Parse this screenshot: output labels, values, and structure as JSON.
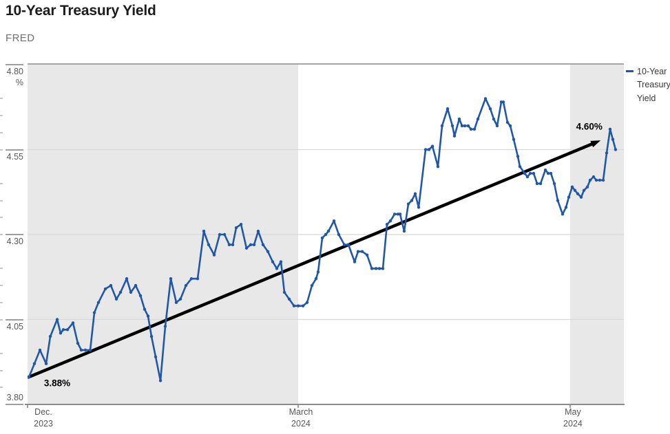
{
  "header": {
    "title": "10-Year Treasury Yield",
    "source": "FRED"
  },
  "legend": {
    "label": "10-Year Treasury Yield",
    "marker_color": "#2057a6"
  },
  "chart_data": {
    "type": "line",
    "title": "10-Year Treasury Yield",
    "source_watermark": "FRED",
    "unit": "%",
    "ylim": [
      3.8,
      4.8
    ],
    "grid": true,
    "legend_position": "right",
    "yticks": [
      {
        "label": "4.80",
        "value": 4.8,
        "sub": "%"
      },
      {
        "label": "4.55",
        "value": 4.55
      },
      {
        "label": "4.30",
        "value": 4.3
      },
      {
        "label": "4.05",
        "value": 4.05
      },
      {
        "label": "3.80",
        "value": 3.8
      }
    ],
    "minor_tick_step": 0.05,
    "xticks": [
      {
        "pos": 0.0266,
        "tick_pos": 0.0,
        "line1": "Dec.",
        "line2": "2023"
      },
      {
        "pos": 0.4584,
        "tick_pos": 0.4538,
        "line1": "March",
        "line2": "2024"
      },
      {
        "pos": 0.9145,
        "tick_pos": 0.9099,
        "line1": "May",
        "line2": "2024"
      }
    ],
    "bands": [
      {
        "from": 0.0,
        "to": 0.4538,
        "color": "#e8e8e8"
      },
      {
        "from": 0.9099,
        "to": 1.0,
        "color": "#e8e8e8"
      }
    ],
    "colors": {
      "line": "#2057a6",
      "band": "#e8e8e8",
      "grid": "#d8d8d8",
      "axis": "#8c8c8c",
      "arrow": "#000000"
    },
    "series": [
      {
        "name": "10-Year Treasury Yield",
        "color": "#2057a6",
        "points": [
          [
            0.0023,
            3.88
          ],
          [
            0.0115,
            3.92
          ],
          [
            0.0208,
            3.96
          ],
          [
            0.0312,
            3.92
          ],
          [
            0.0381,
            4.0
          ],
          [
            0.0497,
            4.05
          ],
          [
            0.0554,
            4.01
          ],
          [
            0.06,
            4.02
          ],
          [
            0.067,
            4.02
          ],
          [
            0.0762,
            4.04
          ],
          [
            0.0843,
            3.98
          ],
          [
            0.0901,
            3.96
          ],
          [
            0.097,
            3.96
          ],
          [
            0.1051,
            3.96
          ],
          [
            0.112,
            4.07
          ],
          [
            0.1189,
            4.1
          ],
          [
            0.1305,
            4.14
          ],
          [
            0.1397,
            4.15
          ],
          [
            0.149,
            4.11
          ],
          [
            0.1559,
            4.13
          ],
          [
            0.1663,
            4.17
          ],
          [
            0.1732,
            4.13
          ],
          [
            0.1813,
            4.15
          ],
          [
            0.1894,
            4.12
          ],
          [
            0.1963,
            4.08
          ],
          [
            0.2021,
            4.06
          ],
          [
            0.2079,
            4.0
          ],
          [
            0.2148,
            3.94
          ],
          [
            0.2229,
            3.87
          ],
          [
            0.2309,
            4.03
          ],
          [
            0.2402,
            4.17
          ],
          [
            0.2494,
            4.1
          ],
          [
            0.2564,
            4.11
          ],
          [
            0.2656,
            4.15
          ],
          [
            0.2748,
            4.17
          ],
          [
            0.2852,
            4.17
          ],
          [
            0.2956,
            4.31
          ],
          [
            0.3037,
            4.27
          ],
          [
            0.3129,
            4.24
          ],
          [
            0.3222,
            4.3
          ],
          [
            0.3303,
            4.3
          ],
          [
            0.3383,
            4.27
          ],
          [
            0.3441,
            4.27
          ],
          [
            0.3499,
            4.32
          ],
          [
            0.358,
            4.33
          ],
          [
            0.3672,
            4.26
          ],
          [
            0.3741,
            4.27
          ],
          [
            0.3799,
            4.27
          ],
          [
            0.3868,
            4.31
          ],
          [
            0.3949,
            4.27
          ],
          [
            0.403,
            4.25
          ],
          [
            0.4111,
            4.22
          ],
          [
            0.418,
            4.2
          ],
          [
            0.4249,
            4.22
          ],
          [
            0.4307,
            4.13
          ],
          [
            0.4388,
            4.11
          ],
          [
            0.4469,
            4.09
          ],
          [
            0.4538,
            4.09
          ],
          [
            0.4619,
            4.09
          ],
          [
            0.4688,
            4.1
          ],
          [
            0.4769,
            4.15
          ],
          [
            0.4838,
            4.17
          ],
          [
            0.4873,
            4.19
          ],
          [
            0.4942,
            4.29
          ],
          [
            0.5,
            4.3
          ],
          [
            0.5046,
            4.31
          ],
          [
            0.5139,
            4.34
          ],
          [
            0.5219,
            4.3
          ],
          [
            0.5312,
            4.27
          ],
          [
            0.5381,
            4.27
          ],
          [
            0.5485,
            4.22
          ],
          [
            0.5543,
            4.25
          ],
          [
            0.5612,
            4.25
          ],
          [
            0.5693,
            4.24
          ],
          [
            0.5774,
            4.2
          ],
          [
            0.5843,
            4.2
          ],
          [
            0.5901,
            4.2
          ],
          [
            0.5958,
            4.2
          ],
          [
            0.6028,
            4.33
          ],
          [
            0.6085,
            4.34
          ],
          [
            0.6155,
            4.36
          ],
          [
            0.6212,
            4.36
          ],
          [
            0.6247,
            4.36
          ],
          [
            0.6316,
            4.31
          ],
          [
            0.6386,
            4.39
          ],
          [
            0.6443,
            4.4
          ],
          [
            0.6501,
            4.42
          ],
          [
            0.6559,
            4.38
          ],
          [
            0.6674,
            4.55
          ],
          [
            0.6732,
            4.55
          ],
          [
            0.679,
            4.56
          ],
          [
            0.6882,
            4.5
          ],
          [
            0.6951,
            4.62
          ],
          [
            0.7044,
            4.67
          ],
          [
            0.7125,
            4.62
          ],
          [
            0.7159,
            4.59
          ],
          [
            0.724,
            4.64
          ],
          [
            0.7286,
            4.62
          ],
          [
            0.7333,
            4.62
          ],
          [
            0.739,
            4.62
          ],
          [
            0.7436,
            4.61
          ],
          [
            0.7494,
            4.61
          ],
          [
            0.7552,
            4.64
          ],
          [
            0.7679,
            4.7
          ],
          [
            0.776,
            4.67
          ],
          [
            0.7817,
            4.64
          ],
          [
            0.7875,
            4.62
          ],
          [
            0.7945,
            4.69
          ],
          [
            0.7979,
            4.69
          ],
          [
            0.8049,
            4.63
          ],
          [
            0.8095,
            4.62
          ],
          [
            0.8152,
            4.58
          ],
          [
            0.8222,
            4.53
          ],
          [
            0.8256,
            4.5
          ],
          [
            0.8337,
            4.48
          ],
          [
            0.8383,
            4.47
          ],
          [
            0.843,
            4.48
          ],
          [
            0.8487,
            4.48
          ],
          [
            0.8545,
            4.45
          ],
          [
            0.8603,
            4.45
          ],
          [
            0.8684,
            4.49
          ],
          [
            0.873,
            4.48
          ],
          [
            0.8776,
            4.48
          ],
          [
            0.8834,
            4.45
          ],
          [
            0.8891,
            4.4
          ],
          [
            0.8972,
            4.36
          ],
          [
            0.903,
            4.38
          ],
          [
            0.9076,
            4.41
          ],
          [
            0.9134,
            4.44
          ],
          [
            0.918,
            4.43
          ],
          [
            0.9226,
            4.42
          ],
          [
            0.9284,
            4.41
          ],
          [
            0.933,
            4.43
          ],
          [
            0.9388,
            4.44
          ],
          [
            0.9434,
            4.46
          ],
          [
            0.9492,
            4.47
          ],
          [
            0.9538,
            4.46
          ],
          [
            0.9596,
            4.46
          ],
          [
            0.9654,
            4.46
          ],
          [
            0.9711,
            4.54
          ],
          [
            0.9769,
            4.61
          ],
          [
            0.9815,
            4.58
          ],
          [
            0.9861,
            4.55
          ]
        ]
      }
    ],
    "trend_arrow": {
      "from": {
        "x_frac": -0.002,
        "value": 3.879
      },
      "to": {
        "x_frac": 0.961,
        "value": 4.577
      }
    },
    "annotations": [
      {
        "text": "3.88%",
        "x_frac": 0.0497,
        "value": 3.863
      },
      {
        "text": "4.60%",
        "x_frac": 0.942,
        "value": 4.618
      }
    ]
  }
}
